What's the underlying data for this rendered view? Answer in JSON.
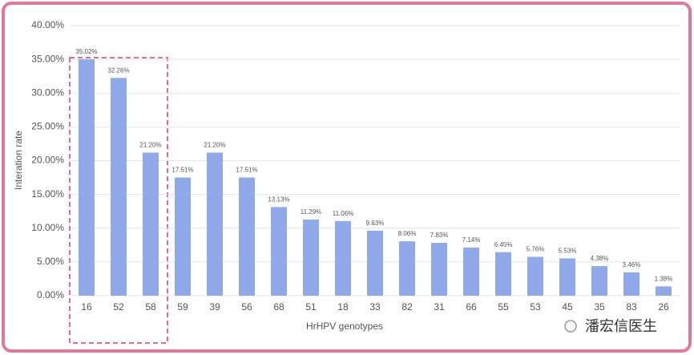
{
  "chart_data": {
    "type": "bar",
    "x_label": "HrHPV genotypes",
    "y_label": "Interation rate",
    "categories": [
      "16",
      "52",
      "58",
      "59",
      "39",
      "56",
      "68",
      "51",
      "18",
      "33",
      "82",
      "31",
      "66",
      "55",
      "53",
      "45",
      "35",
      "83",
      "26"
    ],
    "values": [
      35.02,
      32.26,
      21.2,
      17.51,
      21.2,
      17.51,
      13.13,
      11.29,
      11.06,
      9.63,
      8.06,
      7.83,
      7.14,
      6.45,
      5.76,
      5.53,
      4.38,
      3.46,
      1.38
    ],
    "value_labels": [
      "35.02%",
      "32.26%",
      "21.20%",
      "17.51%",
      "21.20%",
      "17.51%",
      "13.13%",
      "11.29%",
      "11.06%",
      "9.63%",
      "8.06%",
      "7.83%",
      "7.14%",
      "6.45%",
      "5.76%",
      "5.53%",
      "4.38%",
      "3.46%",
      "1.38%"
    ],
    "color": "#8eaae8",
    "ylim": [
      0,
      40
    ],
    "yticks": [
      {
        "value": 0,
        "label": "0.00%"
      },
      {
        "value": 5,
        "label": "5.00%"
      },
      {
        "value": 10,
        "label": "10.00%"
      },
      {
        "value": 15,
        "label": "15.00%"
      },
      {
        "value": 20,
        "label": "20.00%"
      },
      {
        "value": 25,
        "label": "25.00%"
      },
      {
        "value": 30,
        "label": "30.00%"
      },
      {
        "value": 35,
        "label": "35.00%"
      },
      {
        "value": 40,
        "label": "40.00%"
      }
    ],
    "grid": true
  },
  "watermark": "潘宏信医生"
}
